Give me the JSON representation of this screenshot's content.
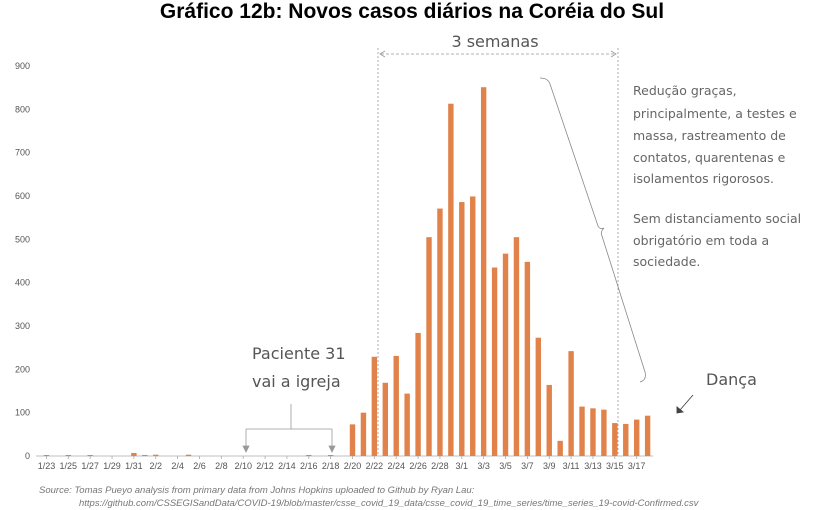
{
  "chart_data": {
    "type": "bar",
    "title": "Gráfico 12b: Novos casos diários na Coréia do Sul",
    "xlabel": "",
    "ylabel": "",
    "ylim": [
      0,
      900
    ],
    "y_ticks": [
      0,
      100,
      200,
      300,
      400,
      500,
      600,
      700,
      800,
      900
    ],
    "grid": false,
    "color": "#E0824A",
    "x_tick_labels": [
      "1/23",
      "1/25",
      "1/27",
      "1/29",
      "1/31",
      "2/2",
      "2/4",
      "2/6",
      "2/8",
      "2/10",
      "2/12",
      "2/14",
      "2/16",
      "2/18",
      "2/20",
      "2/22",
      "2/24",
      "2/26",
      "2/28",
      "3/1",
      "3/3",
      "3/5",
      "3/7",
      "3/9",
      "3/11",
      "3/13",
      "3/15",
      "3/17"
    ],
    "categories": [
      "1/23",
      "1/24",
      "1/25",
      "1/26",
      "1/27",
      "1/28",
      "1/29",
      "1/30",
      "1/31",
      "2/1",
      "2/2",
      "2/3",
      "2/4",
      "2/5",
      "2/6",
      "2/7",
      "2/8",
      "2/9",
      "2/10",
      "2/11",
      "2/12",
      "2/13",
      "2/14",
      "2/15",
      "2/16",
      "2/17",
      "2/18",
      "2/19",
      "2/20",
      "2/21",
      "2/22",
      "2/23",
      "2/24",
      "2/25",
      "2/26",
      "2/27",
      "2/28",
      "2/29",
      "3/1",
      "3/2",
      "3/3",
      "3/4",
      "3/5",
      "3/6",
      "3/7",
      "3/8",
      "3/9",
      "3/10",
      "3/11",
      "3/12",
      "3/13",
      "3/14",
      "3/15",
      "3/16",
      "3/17",
      "3/18"
    ],
    "values": [
      1,
      0,
      1,
      0,
      2,
      0,
      0,
      0,
      7,
      1,
      3,
      0,
      0,
      3,
      0,
      0,
      0,
      0,
      0,
      0,
      0,
      0,
      0,
      0,
      1,
      0,
      2,
      0,
      73,
      100,
      229,
      169,
      231,
      144,
      284,
      505,
      571,
      813,
      586,
      599,
      851,
      435,
      467,
      505,
      448,
      273,
      164,
      35,
      242,
      114,
      110,
      107,
      76,
      74,
      84,
      93
    ],
    "annotations": {
      "weeks": "3 semanas",
      "patient_line1": "Paciente 31",
      "patient_line2": "vai a igreja",
      "reduction_lines": [
        "Redução graças,",
        "principalmente, a testes e",
        "massa, rastreamento de",
        "contatos, quarentenas e",
        "isolamentos rigorosos."
      ],
      "no_distancing_lines": [
        "Sem distanciamento social",
        "obrigatório em toda a",
        "sociedade."
      ],
      "dance": "Dança"
    },
    "source_line1": "Source: Tomas Pueyo analysis from primary data from Johns Hopkins uploaded to Github by Ryan Lau:",
    "source_line2": "https://github.com/CSSEGISandData/COVID-19/blob/master/csse_covid_19_data/csse_covid_19_time_series/time_series_19-covid-Confirmed.csv"
  }
}
